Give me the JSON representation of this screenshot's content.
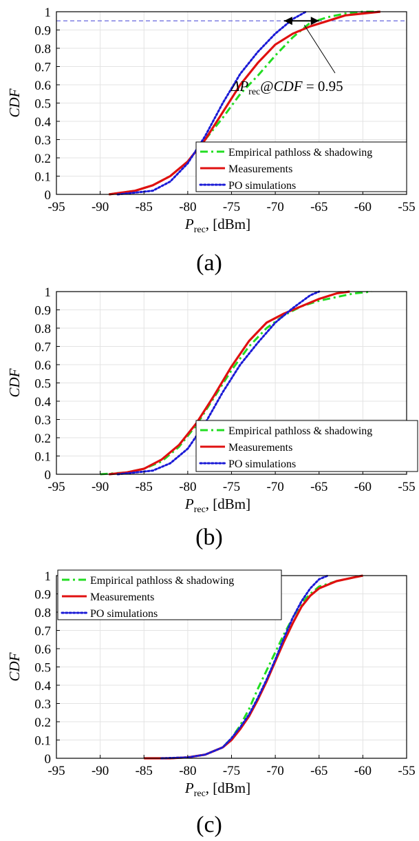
{
  "chart_data": [
    {
      "type": "line",
      "panel_label": "(a)",
      "ylabel": "CDF",
      "xlabel": {
        "symbol": "P",
        "subscript": "rec",
        "unit": ", [dBm]"
      },
      "xlim": [
        -95,
        -55
      ],
      "ylim": [
        0,
        1
      ],
      "xticks": [
        "-95",
        "-90",
        "-85",
        "-80",
        "-75",
        "-70",
        "-65",
        "-60",
        "-55"
      ],
      "yticks": [
        "0",
        "0.1",
        "0.2",
        "0.3",
        "0.4",
        "0.5",
        "0.6",
        "0.7",
        "0.8",
        "0.9",
        "1"
      ],
      "grid": true,
      "legend_position": "lower-right",
      "reference_line": {
        "y": 0.95,
        "color": "#6666dd"
      },
      "annotation": {
        "lead": "ΔP",
        "sub": "rec",
        "mid": "@",
        "it": "CDF",
        "tail": " = 0.95"
      },
      "series": [
        {
          "name": "Empirical pathloss & shadowing",
          "color": "#22dd22",
          "style": "dashdot",
          "x": [
            -89,
            -86,
            -84,
            -82,
            -80,
            -78,
            -76,
            -74,
            -72,
            -70,
            -68,
            -66,
            -64,
            -62,
            -60,
            -58
          ],
          "y": [
            0,
            0.02,
            0.05,
            0.1,
            0.18,
            0.3,
            0.42,
            0.55,
            0.65,
            0.76,
            0.86,
            0.94,
            0.97,
            0.99,
            1,
            1
          ]
        },
        {
          "name": "Measurements",
          "color": "#e01010",
          "style": "solid",
          "x": [
            -89,
            -86,
            -84,
            -82,
            -80,
            -78,
            -76,
            -74,
            -72,
            -70,
            -68,
            -66,
            -64,
            -62,
            -60,
            -58
          ],
          "y": [
            0,
            0.02,
            0.05,
            0.1,
            0.18,
            0.3,
            0.45,
            0.6,
            0.72,
            0.82,
            0.88,
            0.92,
            0.95,
            0.98,
            0.99,
            1
          ]
        },
        {
          "name": "PO simulations",
          "color": "#1a1ad6",
          "style": "dotted",
          "x": [
            -88,
            -86,
            -84,
            -82,
            -80,
            -78,
            -76,
            -74,
            -72,
            -70,
            -68,
            -66.5
          ],
          "y": [
            0,
            0.01,
            0.02,
            0.07,
            0.17,
            0.32,
            0.5,
            0.66,
            0.78,
            0.88,
            0.96,
            1
          ]
        }
      ]
    },
    {
      "type": "line",
      "panel_label": "(b)",
      "ylabel": "CDF",
      "xlabel": {
        "symbol": "P",
        "subscript": "rec",
        "unit": ", [dBm]"
      },
      "xlim": [
        -95,
        -55
      ],
      "ylim": [
        0,
        1
      ],
      "xticks": [
        "-95",
        "-90",
        "-85",
        "-80",
        "-75",
        "-70",
        "-65",
        "-60",
        "-55"
      ],
      "yticks": [
        "0",
        "0.1",
        "0.2",
        "0.3",
        "0.4",
        "0.5",
        "0.6",
        "0.7",
        "0.8",
        "0.9",
        "1"
      ],
      "grid": true,
      "legend_position": "lower-right",
      "series": [
        {
          "name": "Empirical pathloss & shadowing",
          "color": "#22dd22",
          "style": "dashdot",
          "x": [
            -90,
            -87,
            -85,
            -83,
            -81,
            -79,
            -77,
            -75,
            -73,
            -71,
            -69,
            -67,
            -65,
            -63,
            -61,
            -59
          ],
          "y": [
            0,
            0.01,
            0.03,
            0.07,
            0.15,
            0.27,
            0.42,
            0.57,
            0.7,
            0.8,
            0.87,
            0.92,
            0.95,
            0.97,
            0.99,
            1
          ]
        },
        {
          "name": "Measurements",
          "color": "#e01010",
          "style": "solid",
          "x": [
            -89,
            -87,
            -85,
            -83,
            -81,
            -79,
            -77,
            -75,
            -73,
            -71,
            -69,
            -67,
            -65,
            -63,
            -61.5
          ],
          "y": [
            0,
            0.01,
            0.03,
            0.08,
            0.16,
            0.28,
            0.43,
            0.59,
            0.73,
            0.83,
            0.88,
            0.92,
            0.96,
            0.99,
            1
          ]
        },
        {
          "name": "PO simulations",
          "color": "#1a1ad6",
          "style": "dotted",
          "x": [
            -88,
            -86,
            -84,
            -82,
            -80,
            -78,
            -76,
            -74,
            -72,
            -70,
            -68,
            -66,
            -65
          ],
          "y": [
            0,
            0.01,
            0.02,
            0.06,
            0.14,
            0.28,
            0.45,
            0.6,
            0.72,
            0.83,
            0.91,
            0.98,
            1
          ]
        }
      ]
    },
    {
      "type": "line",
      "panel_label": "(c)",
      "ylabel": "CDF",
      "xlabel": {
        "symbol": "P",
        "subscript": "rec",
        "unit": ", [dBm]"
      },
      "xlim": [
        -95,
        -55
      ],
      "ylim": [
        0,
        1
      ],
      "xticks": [
        "-95",
        "-90",
        "-85",
        "-80",
        "-75",
        "-70",
        "-65",
        "-60",
        "-55"
      ],
      "yticks": [
        "0",
        "0.1",
        "0.2",
        "0.3",
        "0.4",
        "0.5",
        "0.6",
        "0.7",
        "0.8",
        "0.9",
        "1"
      ],
      "grid": true,
      "legend_position": "upper-left",
      "series": [
        {
          "name": "Empirical pathloss & shadowing",
          "color": "#22dd22",
          "style": "dashdot",
          "x": [
            -85,
            -82,
            -80,
            -78,
            -76,
            -75,
            -74,
            -73,
            -72,
            -71,
            -70,
            -69,
            -68,
            -67,
            -66,
            -65,
            -63,
            -61,
            -60
          ],
          "y": [
            0,
            0,
            0.005,
            0.02,
            0.06,
            0.11,
            0.18,
            0.27,
            0.38,
            0.48,
            0.58,
            0.68,
            0.77,
            0.85,
            0.9,
            0.94,
            0.97,
            0.99,
            1
          ]
        },
        {
          "name": "Measurements",
          "color": "#e01010",
          "style": "solid",
          "x": [
            -85,
            -82,
            -80,
            -78,
            -76,
            -75,
            -74,
            -73,
            -72,
            -71,
            -70,
            -69,
            -68,
            -67,
            -66,
            -65,
            -63,
            -61,
            -60
          ],
          "y": [
            0,
            0,
            0.005,
            0.02,
            0.06,
            0.1,
            0.16,
            0.23,
            0.32,
            0.42,
            0.53,
            0.64,
            0.74,
            0.83,
            0.89,
            0.93,
            0.97,
            0.99,
            1
          ]
        },
        {
          "name": "PO simulations",
          "color": "#1a1ad6",
          "style": "dotted",
          "x": [
            -83,
            -80,
            -78,
            -76,
            -75,
            -74,
            -73,
            -72,
            -71,
            -70,
            -69,
            -68,
            -67,
            -66,
            -65,
            -64
          ],
          "y": [
            0,
            0.005,
            0.02,
            0.06,
            0.11,
            0.17,
            0.24,
            0.33,
            0.43,
            0.54,
            0.66,
            0.77,
            0.86,
            0.93,
            0.98,
            1
          ]
        }
      ]
    }
  ]
}
